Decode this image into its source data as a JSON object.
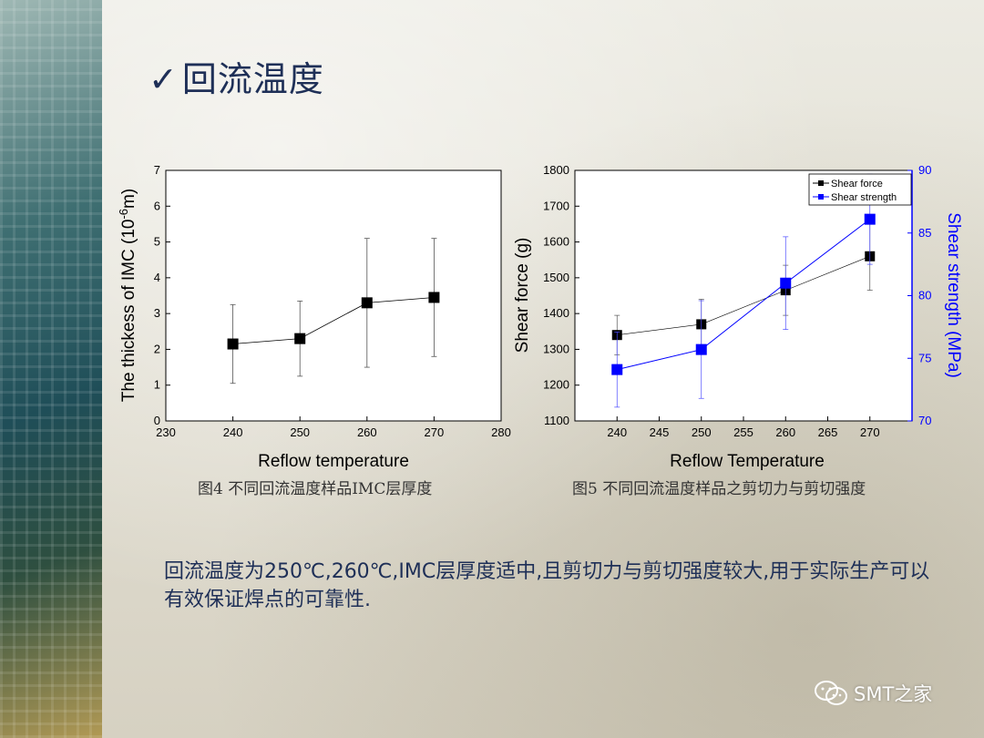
{
  "title": {
    "check": "✓",
    "text": "回流温度"
  },
  "captions": {
    "fig4": "图4 不同回流温度样品IMC层厚度",
    "fig5": "图5 不同回流温度样品之剪切力与剪切强度"
  },
  "conclusion": "回流温度为250℃,260℃,IMC层厚度适中,且剪切力与剪切强度较大,用于实际生产可以有效保证焊点的可靠性.",
  "watermark": {
    "text": "SMT之家",
    "icon": "wechat-icon"
  },
  "colors": {
    "title": "#1e2f57",
    "series2": "#0000ff"
  },
  "chart_data": [
    {
      "type": "scatter",
      "xlabel": "Reflow temperature",
      "ylabel": "The thickess of IMC (10",
      "ylabel_sup": "-6",
      "ylabel_end": "m)",
      "xlim": [
        230,
        280
      ],
      "ylim": [
        0,
        7
      ],
      "xticks": [
        230,
        240,
        250,
        260,
        270,
        280
      ],
      "yticks": [
        0,
        1,
        2,
        3,
        4,
        5,
        6,
        7
      ],
      "series": [
        {
          "x": [
            240,
            250,
            260,
            270
          ],
          "y": [
            2.15,
            2.3,
            3.3,
            3.45
          ],
          "err": [
            1.1,
            1.05,
            1.8,
            1.65
          ],
          "color": "#000000",
          "marker": "square",
          "line": true
        }
      ]
    },
    {
      "type": "line",
      "xlabel": "Reflow Temperature",
      "ylabel": "Shear force (g)",
      "y2label": "Shear strength (MPa)",
      "xlim": [
        235,
        275
      ],
      "ylim": [
        1100,
        1800
      ],
      "y2lim": [
        70,
        90
      ],
      "xticks": [
        240,
        245,
        250,
        255,
        260,
        265,
        270
      ],
      "yticks": [
        1100,
        1200,
        1300,
        1400,
        1500,
        1600,
        1700,
        1800
      ],
      "y2ticks": [
        70,
        75,
        80,
        85,
        90
      ],
      "legend": "top-right",
      "series": [
        {
          "name": "Shear force",
          "axis": "left",
          "color": "#000000",
          "x": [
            240,
            250,
            260,
            270
          ],
          "y": [
            1340,
            1370,
            1465,
            1560
          ],
          "err": [
            55,
            70,
            70,
            95
          ]
        },
        {
          "name": "Shear strength",
          "axis": "right",
          "color": "#0000ff",
          "x": [
            240,
            250,
            260,
            270
          ],
          "y": [
            74.1,
            75.7,
            81.0,
            86.1
          ],
          "err": [
            3.0,
            3.9,
            3.7,
            3.6
          ]
        }
      ]
    }
  ]
}
